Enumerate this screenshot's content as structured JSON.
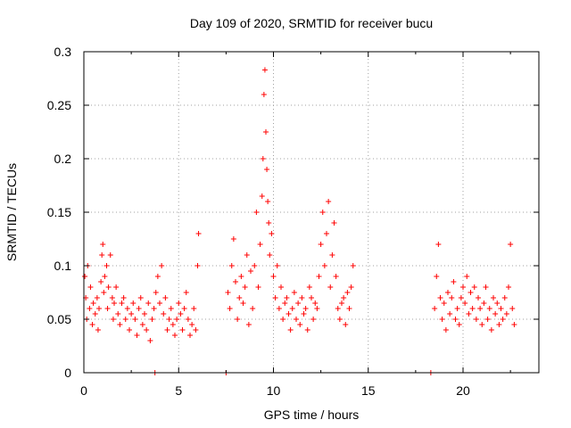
{
  "chart_data": {
    "type": "scatter",
    "title": "Day 109 of 2020, SRMTID for receiver bucu",
    "xlabel": "GPS time / hours",
    "ylabel": "SRMTID / TECUs",
    "xlim": [
      0,
      24
    ],
    "ylim": [
      0,
      0.3
    ],
    "grid": true,
    "marker": "+",
    "color": "#ff0000",
    "x_ticks": [
      0,
      5,
      10,
      15,
      20
    ],
    "x_tick_labels": [
      "0",
      "5",
      "10",
      "15",
      "20"
    ],
    "y_ticks": [
      0,
      0.05,
      0.1,
      0.15,
      0.2,
      0.25,
      0.3
    ],
    "y_tick_labels": [
      "0",
      "0.05",
      "0.1",
      "0.15",
      "0.2",
      "0.25",
      "0.3"
    ],
    "series": [
      {
        "name": "SRMTID",
        "points": [
          [
            0.05,
            0.09
          ],
          [
            0.1,
            0.07
          ],
          [
            0.15,
            0.05
          ],
          [
            0.2,
            0.1
          ],
          [
            0.3,
            0.06
          ],
          [
            0.35,
            0.08
          ],
          [
            0.45,
            0.045
          ],
          [
            0.5,
            0.065
          ],
          [
            0.6,
            0.055
          ],
          [
            0.7,
            0.07
          ],
          [
            0.75,
            0.04
          ],
          [
            0.8,
            0.06
          ],
          [
            0.9,
            0.085
          ],
          [
            0.95,
            0.11
          ],
          [
            1.0,
            0.12
          ],
          [
            1.05,
            0.075
          ],
          [
            1.1,
            0.09
          ],
          [
            1.2,
            0.1
          ],
          [
            1.25,
            0.06
          ],
          [
            1.3,
            0.08
          ],
          [
            1.4,
            0.11
          ],
          [
            1.5,
            0.07
          ],
          [
            1.55,
            0.05
          ],
          [
            1.6,
            0.065
          ],
          [
            1.7,
            0.08
          ],
          [
            1.8,
            0.055
          ],
          [
            1.9,
            0.045
          ],
          [
            2.0,
            0.065
          ],
          [
            2.1,
            0.07
          ],
          [
            2.2,
            0.05
          ],
          [
            2.3,
            0.06
          ],
          [
            2.4,
            0.04
          ],
          [
            2.5,
            0.055
          ],
          [
            2.6,
            0.065
          ],
          [
            2.7,
            0.05
          ],
          [
            2.8,
            0.035
          ],
          [
            2.9,
            0.06
          ],
          [
            3.0,
            0.07
          ],
          [
            3.1,
            0.045
          ],
          [
            3.2,
            0.055
          ],
          [
            3.3,
            0.04
          ],
          [
            3.4,
            0.065
          ],
          [
            3.5,
            0.03
          ],
          [
            3.6,
            0.05
          ],
          [
            3.7,
            0.06
          ],
          [
            3.75,
            0.0
          ],
          [
            3.8,
            0.075
          ],
          [
            3.9,
            0.09
          ],
          [
            4.0,
            0.065
          ],
          [
            4.1,
            0.1
          ],
          [
            4.2,
            0.055
          ],
          [
            4.3,
            0.07
          ],
          [
            4.4,
            0.04
          ],
          [
            4.5,
            0.05
          ],
          [
            4.6,
            0.06
          ],
          [
            4.7,
            0.045
          ],
          [
            4.8,
            0.035
          ],
          [
            4.9,
            0.05
          ],
          [
            5.0,
            0.065
          ],
          [
            5.1,
            0.055
          ],
          [
            5.2,
            0.04
          ],
          [
            5.3,
            0.06
          ],
          [
            5.4,
            0.075
          ],
          [
            5.5,
            0.05
          ],
          [
            5.6,
            0.035
          ],
          [
            5.7,
            0.045
          ],
          [
            5.8,
            0.06
          ],
          [
            5.9,
            0.04
          ],
          [
            6.0,
            0.1
          ],
          [
            6.05,
            0.13
          ],
          [
            7.5,
            0.0
          ],
          [
            7.6,
            0.075
          ],
          [
            7.7,
            0.06
          ],
          [
            7.8,
            0.1
          ],
          [
            7.9,
            0.125
          ],
          [
            8.0,
            0.085
          ],
          [
            8.1,
            0.05
          ],
          [
            8.2,
            0.07
          ],
          [
            8.3,
            0.09
          ],
          [
            8.4,
            0.065
          ],
          [
            8.5,
            0.08
          ],
          [
            8.6,
            0.11
          ],
          [
            8.7,
            0.045
          ],
          [
            8.8,
            0.095
          ],
          [
            8.9,
            0.06
          ],
          [
            9.0,
            0.1
          ],
          [
            9.1,
            0.15
          ],
          [
            9.2,
            0.08
          ],
          [
            9.3,
            0.12
          ],
          [
            9.4,
            0.165
          ],
          [
            9.45,
            0.2
          ],
          [
            9.5,
            0.26
          ],
          [
            9.55,
            0.283
          ],
          [
            9.6,
            0.225
          ],
          [
            9.65,
            0.19
          ],
          [
            9.7,
            0.16
          ],
          [
            9.75,
            0.14
          ],
          [
            9.8,
            0.11
          ],
          [
            9.9,
            0.13
          ],
          [
            10.0,
            0.09
          ],
          [
            10.1,
            0.07
          ],
          [
            10.2,
            0.1
          ],
          [
            10.3,
            0.06
          ],
          [
            10.4,
            0.08
          ],
          [
            10.5,
            0.05
          ],
          [
            10.6,
            0.065
          ],
          [
            10.7,
            0.07
          ],
          [
            10.8,
            0.055
          ],
          [
            10.9,
            0.04
          ],
          [
            11.0,
            0.06
          ],
          [
            11.1,
            0.075
          ],
          [
            11.2,
            0.05
          ],
          [
            11.3,
            0.065
          ],
          [
            11.4,
            0.045
          ],
          [
            11.5,
            0.07
          ],
          [
            11.6,
            0.055
          ],
          [
            11.7,
            0.06
          ],
          [
            11.8,
            0.04
          ],
          [
            11.9,
            0.08
          ],
          [
            12.0,
            0.07
          ],
          [
            12.1,
            0.05
          ],
          [
            12.2,
            0.065
          ],
          [
            12.3,
            0.06
          ],
          [
            12.4,
            0.09
          ],
          [
            12.5,
            0.12
          ],
          [
            12.6,
            0.15
          ],
          [
            12.7,
            0.1
          ],
          [
            12.8,
            0.13
          ],
          [
            12.9,
            0.16
          ],
          [
            13.0,
            0.08
          ],
          [
            13.1,
            0.11
          ],
          [
            13.2,
            0.14
          ],
          [
            13.3,
            0.09
          ],
          [
            13.4,
            0.06
          ],
          [
            13.5,
            0.05
          ],
          [
            13.6,
            0.065
          ],
          [
            13.7,
            0.07
          ],
          [
            13.8,
            0.045
          ],
          [
            13.9,
            0.075
          ],
          [
            14.0,
            0.06
          ],
          [
            14.1,
            0.08
          ],
          [
            14.2,
            0.1
          ],
          [
            18.3,
            0.0
          ],
          [
            18.5,
            0.06
          ],
          [
            18.6,
            0.09
          ],
          [
            18.7,
            0.12
          ],
          [
            18.8,
            0.07
          ],
          [
            18.9,
            0.05
          ],
          [
            19.0,
            0.065
          ],
          [
            19.1,
            0.04
          ],
          [
            19.2,
            0.075
          ],
          [
            19.3,
            0.055
          ],
          [
            19.4,
            0.07
          ],
          [
            19.5,
            0.085
          ],
          [
            19.6,
            0.05
          ],
          [
            19.7,
            0.06
          ],
          [
            19.8,
            0.045
          ],
          [
            19.9,
            0.07
          ],
          [
            20.0,
            0.08
          ],
          [
            20.1,
            0.065
          ],
          [
            20.2,
            0.09
          ],
          [
            20.3,
            0.055
          ],
          [
            20.4,
            0.075
          ],
          [
            20.5,
            0.06
          ],
          [
            20.6,
            0.08
          ],
          [
            20.7,
            0.05
          ],
          [
            20.8,
            0.07
          ],
          [
            20.9,
            0.06
          ],
          [
            21.0,
            0.045
          ],
          [
            21.1,
            0.065
          ],
          [
            21.2,
            0.08
          ],
          [
            21.3,
            0.05
          ],
          [
            21.4,
            0.06
          ],
          [
            21.5,
            0.04
          ],
          [
            21.6,
            0.07
          ],
          [
            21.7,
            0.055
          ],
          [
            21.8,
            0.065
          ],
          [
            21.9,
            0.045
          ],
          [
            22.0,
            0.06
          ],
          [
            22.1,
            0.05
          ],
          [
            22.2,
            0.07
          ],
          [
            22.3,
            0.055
          ],
          [
            22.4,
            0.08
          ],
          [
            22.5,
            0.12
          ],
          [
            22.6,
            0.06
          ],
          [
            22.7,
            0.045
          ]
        ]
      }
    ]
  }
}
